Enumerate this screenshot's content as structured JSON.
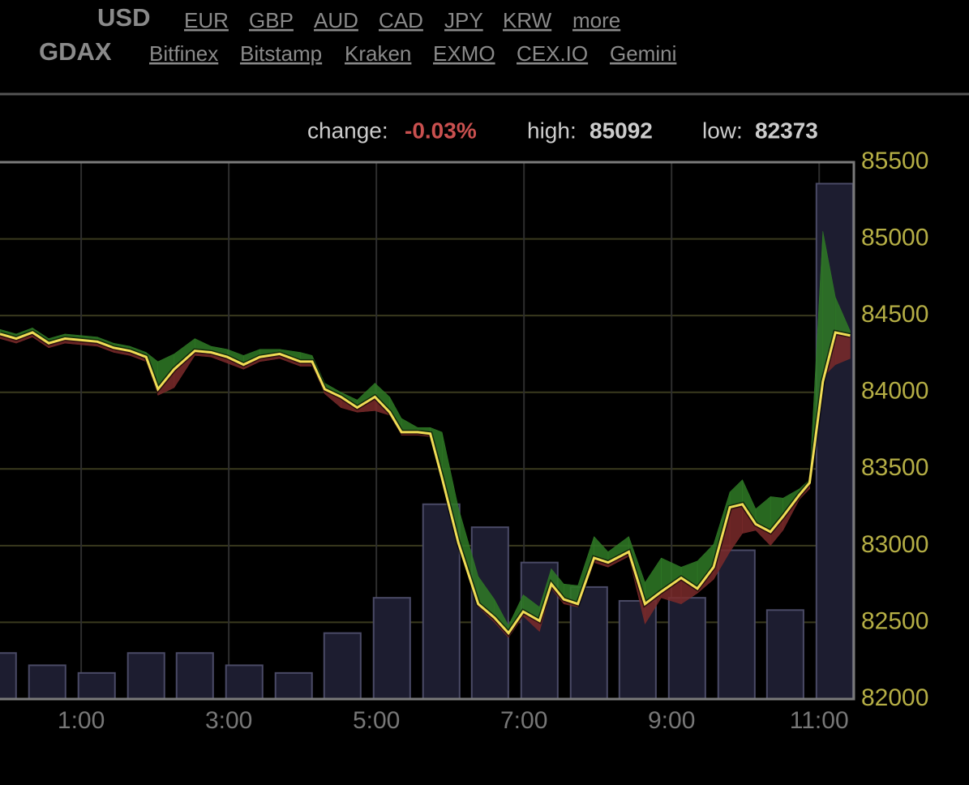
{
  "header": {
    "currency": "USD",
    "currencies": [
      "EUR",
      "GBP",
      "AUD",
      "CAD",
      "JPY",
      "KRW",
      "more"
    ],
    "exchange": "GDAX",
    "exchanges": [
      "Bitfinex",
      "Bitstamp",
      "Kraken",
      "EXMO",
      "CEX.IO",
      "Gemini"
    ]
  },
  "stats": {
    "change_label": "change:",
    "change": "-0.03%",
    "high_label": "high:",
    "high": 85092,
    "low_label": "low:",
    "low": 82373
  },
  "chart_data": {
    "type": "line",
    "x": [
      -0.1,
      0.12,
      0.34,
      0.56,
      0.78,
      1.0,
      1.22,
      1.44,
      1.66,
      1.88,
      2.04,
      2.26,
      2.54,
      2.76,
      2.98,
      3.2,
      3.42,
      3.69,
      3.97,
      4.13,
      4.3,
      4.52,
      4.74,
      4.98,
      5.18,
      5.34,
      5.56,
      5.73,
      5.89,
      6.11,
      6.38,
      6.6,
      6.79,
      6.99,
      7.21,
      7.37,
      7.54,
      7.73,
      7.95,
      8.14,
      8.42,
      8.64,
      8.86,
      9.13,
      9.35,
      9.57,
      9.79,
      9.96,
      10.14,
      10.34,
      10.51,
      10.73,
      10.87,
      11.05,
      11.22,
      11.42
    ],
    "series": [
      {
        "color": "#f0dc55",
        "values": [
          84380,
          84350,
          84390,
          84320,
          84350,
          84340,
          84330,
          84290,
          84270,
          84230,
          84020,
          84150,
          84270,
          84260,
          84230,
          84180,
          84230,
          84250,
          84200,
          84200,
          84020,
          83970,
          83900,
          83970,
          83870,
          83740,
          83740,
          83730,
          83440,
          83020,
          82620,
          82530,
          82430,
          82570,
          82510,
          82750,
          82650,
          82620,
          82920,
          82890,
          82960,
          82620,
          82700,
          82790,
          82720,
          82860,
          83250,
          83270,
          83140,
          83090,
          83190,
          83330,
          83410,
          84070,
          84390,
          84370
        ]
      },
      {
        "color": "#2f7a26",
        "values": [
          84410,
          84380,
          84420,
          84350,
          84380,
          84370,
          84360,
          84320,
          84300,
          84260,
          84200,
          84250,
          84350,
          84300,
          84280,
          84240,
          84280,
          84280,
          84260,
          84240,
          84060,
          84000,
          83950,
          84060,
          83970,
          83830,
          83770,
          83770,
          83740,
          83250,
          82800,
          82650,
          82480,
          82680,
          82600,
          82850,
          82750,
          82740,
          83060,
          82960,
          83060,
          82760,
          82920,
          82860,
          82900,
          83010,
          83350,
          83430,
          83240,
          83320,
          83310,
          83370,
          83430,
          85050,
          84620,
          84400
        ]
      },
      {
        "color": "#7a2a2a",
        "values": [
          84350,
          84320,
          84360,
          84290,
          84320,
          84310,
          84300,
          84260,
          84240,
          84200,
          83980,
          84030,
          84240,
          84230,
          84190,
          84150,
          84200,
          84220,
          84170,
          84170,
          83990,
          83900,
          83870,
          83880,
          83850,
          83720,
          83720,
          83710,
          83420,
          83000,
          82600,
          82500,
          82400,
          82540,
          82440,
          82720,
          82620,
          82600,
          82890,
          82860,
          82930,
          82490,
          82660,
          82620,
          82690,
          82780,
          82960,
          83080,
          83100,
          83000,
          83100,
          83300,
          83370,
          84100,
          84180,
          84220
        ]
      }
    ],
    "volume": {
      "color": "#1d1d30",
      "x": [
        -0.13,
        0.54,
        1.21,
        1.88,
        2.54,
        3.21,
        3.88,
        4.54,
        5.21,
        5.88,
        6.54,
        7.21,
        7.88,
        8.54,
        9.21,
        9.88,
        10.54,
        11.21
      ],
      "values": [
        82300,
        82220,
        82170,
        82300,
        82300,
        82220,
        82170,
        82430,
        82660,
        83270,
        83120,
        82890,
        82730,
        82640,
        82660,
        82970,
        82580,
        85360
      ]
    },
    "xlim": [
      -0.1,
      11.47
    ],
    "xticks": [
      {
        "value": 1,
        "label": "1:00"
      },
      {
        "value": 3,
        "label": "3:00"
      },
      {
        "value": 5,
        "label": "5:00"
      },
      {
        "value": 7,
        "label": "7:00"
      },
      {
        "value": 9,
        "label": "9:00"
      },
      {
        "value": 11,
        "label": "11:00"
      }
    ],
    "ylim": [
      82000,
      85500
    ],
    "yticks": [
      82000,
      82500,
      83000,
      83500,
      84000,
      84500,
      85000,
      85500
    ],
    "grid": true
  }
}
